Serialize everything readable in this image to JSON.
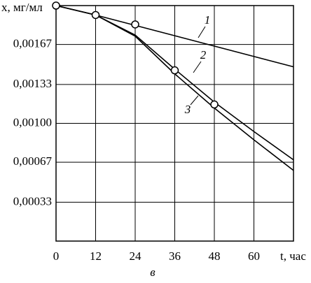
{
  "chart_data": {
    "type": "line",
    "y_label": "x, мг/мл",
    "x_label": "t, час",
    "caption": "в",
    "xlim": [
      0,
      72
    ],
    "xticks": [
      0,
      12,
      24,
      36,
      48,
      60,
      72
    ],
    "xtick_labels_shown": [
      0,
      12,
      24,
      36,
      48,
      60
    ],
    "ylim": [
      0,
      0.002
    ],
    "yticks": [
      {
        "value": 0.00033,
        "label": "0,00033"
      },
      {
        "value": 0.00067,
        "label": "0,00067"
      },
      {
        "value": 0.001,
        "label": "0,00100"
      },
      {
        "value": 0.00133,
        "label": "0,00133"
      },
      {
        "value": 0.00167,
        "label": "0,00167"
      }
    ],
    "grid": true,
    "series": [
      {
        "name": "1",
        "color": "#000000",
        "x": [
          0,
          12,
          72
        ],
        "values": [
          0.002,
          0.00192,
          0.00148
        ]
      },
      {
        "name": "2",
        "color": "#000000",
        "x": [
          0,
          12,
          24,
          36,
          48,
          60,
          72
        ],
        "values": [
          0.002,
          0.00192,
          0.00175,
          0.00146,
          0.00118,
          0.00093,
          0.00069
        ]
      },
      {
        "name": "3",
        "color": "#000000",
        "x": [
          0,
          12,
          24,
          36,
          48,
          60,
          72
        ],
        "values": [
          0.002,
          0.00192,
          0.00174,
          0.00142,
          0.00113,
          0.00086,
          0.0006
        ]
      }
    ],
    "markers": {
      "x": [
        0,
        12,
        24,
        36,
        48
      ],
      "values": [
        0.002,
        0.00192,
        0.00184,
        0.00145,
        0.00116
      ]
    }
  }
}
